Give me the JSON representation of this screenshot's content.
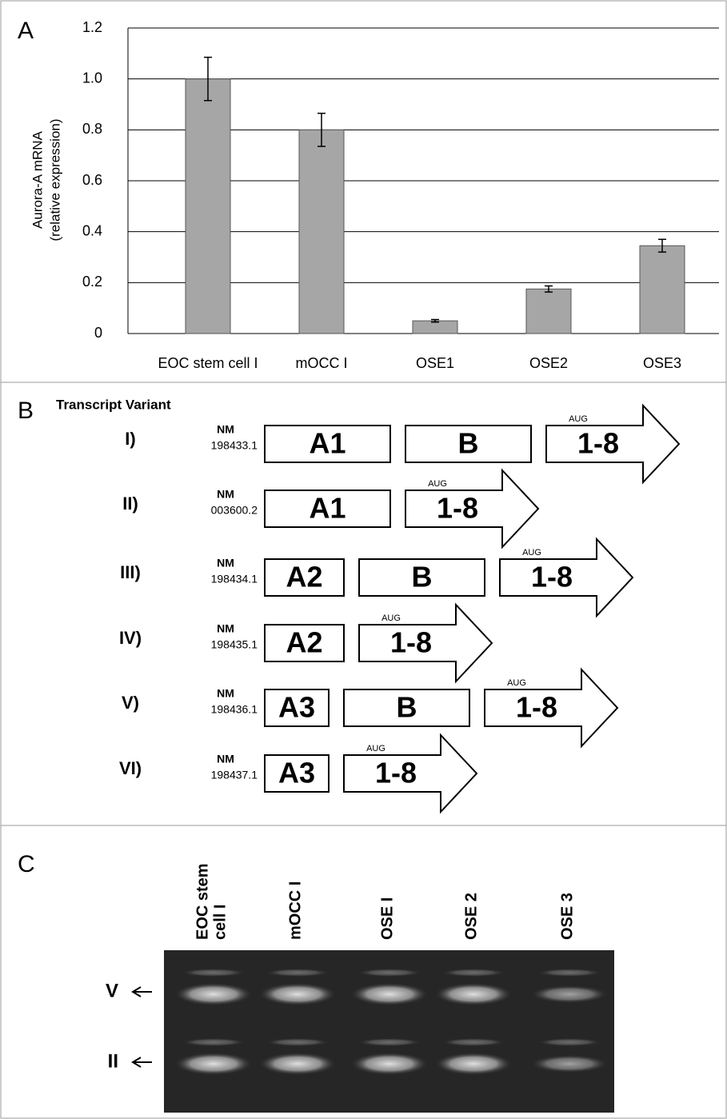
{
  "panel_labels": [
    "A",
    "B",
    "C"
  ],
  "chart_data": {
    "type": "bar",
    "ylabel": [
      "Aurora-A mRNA",
      "(relative expression)"
    ],
    "categories": [
      "EOC stem cell I",
      "mOCC I",
      "OSE1",
      "OSE2",
      "OSE3"
    ],
    "values": [
      1.0,
      0.8,
      0.05,
      0.175,
      0.345
    ],
    "errors": [
      0.085,
      0.065,
      0.005,
      0.012,
      0.025
    ],
    "color": "#a6a6a6",
    "ylim": [
      0,
      1.2
    ],
    "yticks": [
      0,
      0.2,
      0.4,
      0.6,
      0.8,
      {
        "value": 1,
        "label": "1.0"
      },
      1.2
    ],
    "grid": true
  },
  "transcripts": {
    "title": "Transcript Variant",
    "rows": [
      {
        "variant": "I)",
        "nm": "NM",
        "accession": "198433.1",
        "exons": [
          "A1",
          "B"
        ],
        "aug": "AUG",
        "final": "1-8"
      },
      {
        "variant": "II)",
        "nm": "NM",
        "accession": "003600.2",
        "exons": [
          "A1"
        ],
        "aug": "AUG",
        "final": "1-8"
      },
      {
        "variant": "III)",
        "nm": "NM",
        "accession": "198434.1",
        "exons": [
          "A2",
          "B"
        ],
        "aug": "AUG",
        "final": "1-8"
      },
      {
        "variant": "IV)",
        "nm": "NM",
        "accession": "198435.1",
        "exons": [
          "A2"
        ],
        "aug": "AUG",
        "final": "1-8"
      },
      {
        "variant": "V)",
        "nm": "NM",
        "accession": "198436.1",
        "exons": [
          "A3",
          "B"
        ],
        "aug": "AUG",
        "final": "1-8"
      },
      {
        "variant": "VI)",
        "nm": "NM",
        "accession": "198437.1",
        "exons": [
          "A3"
        ],
        "aug": "AUG",
        "final": "1-8"
      }
    ]
  },
  "gel": {
    "lanes": [
      [
        "EOC stem",
        "cell I"
      ],
      [
        "mOCC I"
      ],
      [
        "OSE I"
      ],
      [
        "OSE  2"
      ],
      [
        "OSE  3"
      ]
    ],
    "bands": [
      "V",
      "II"
    ]
  }
}
